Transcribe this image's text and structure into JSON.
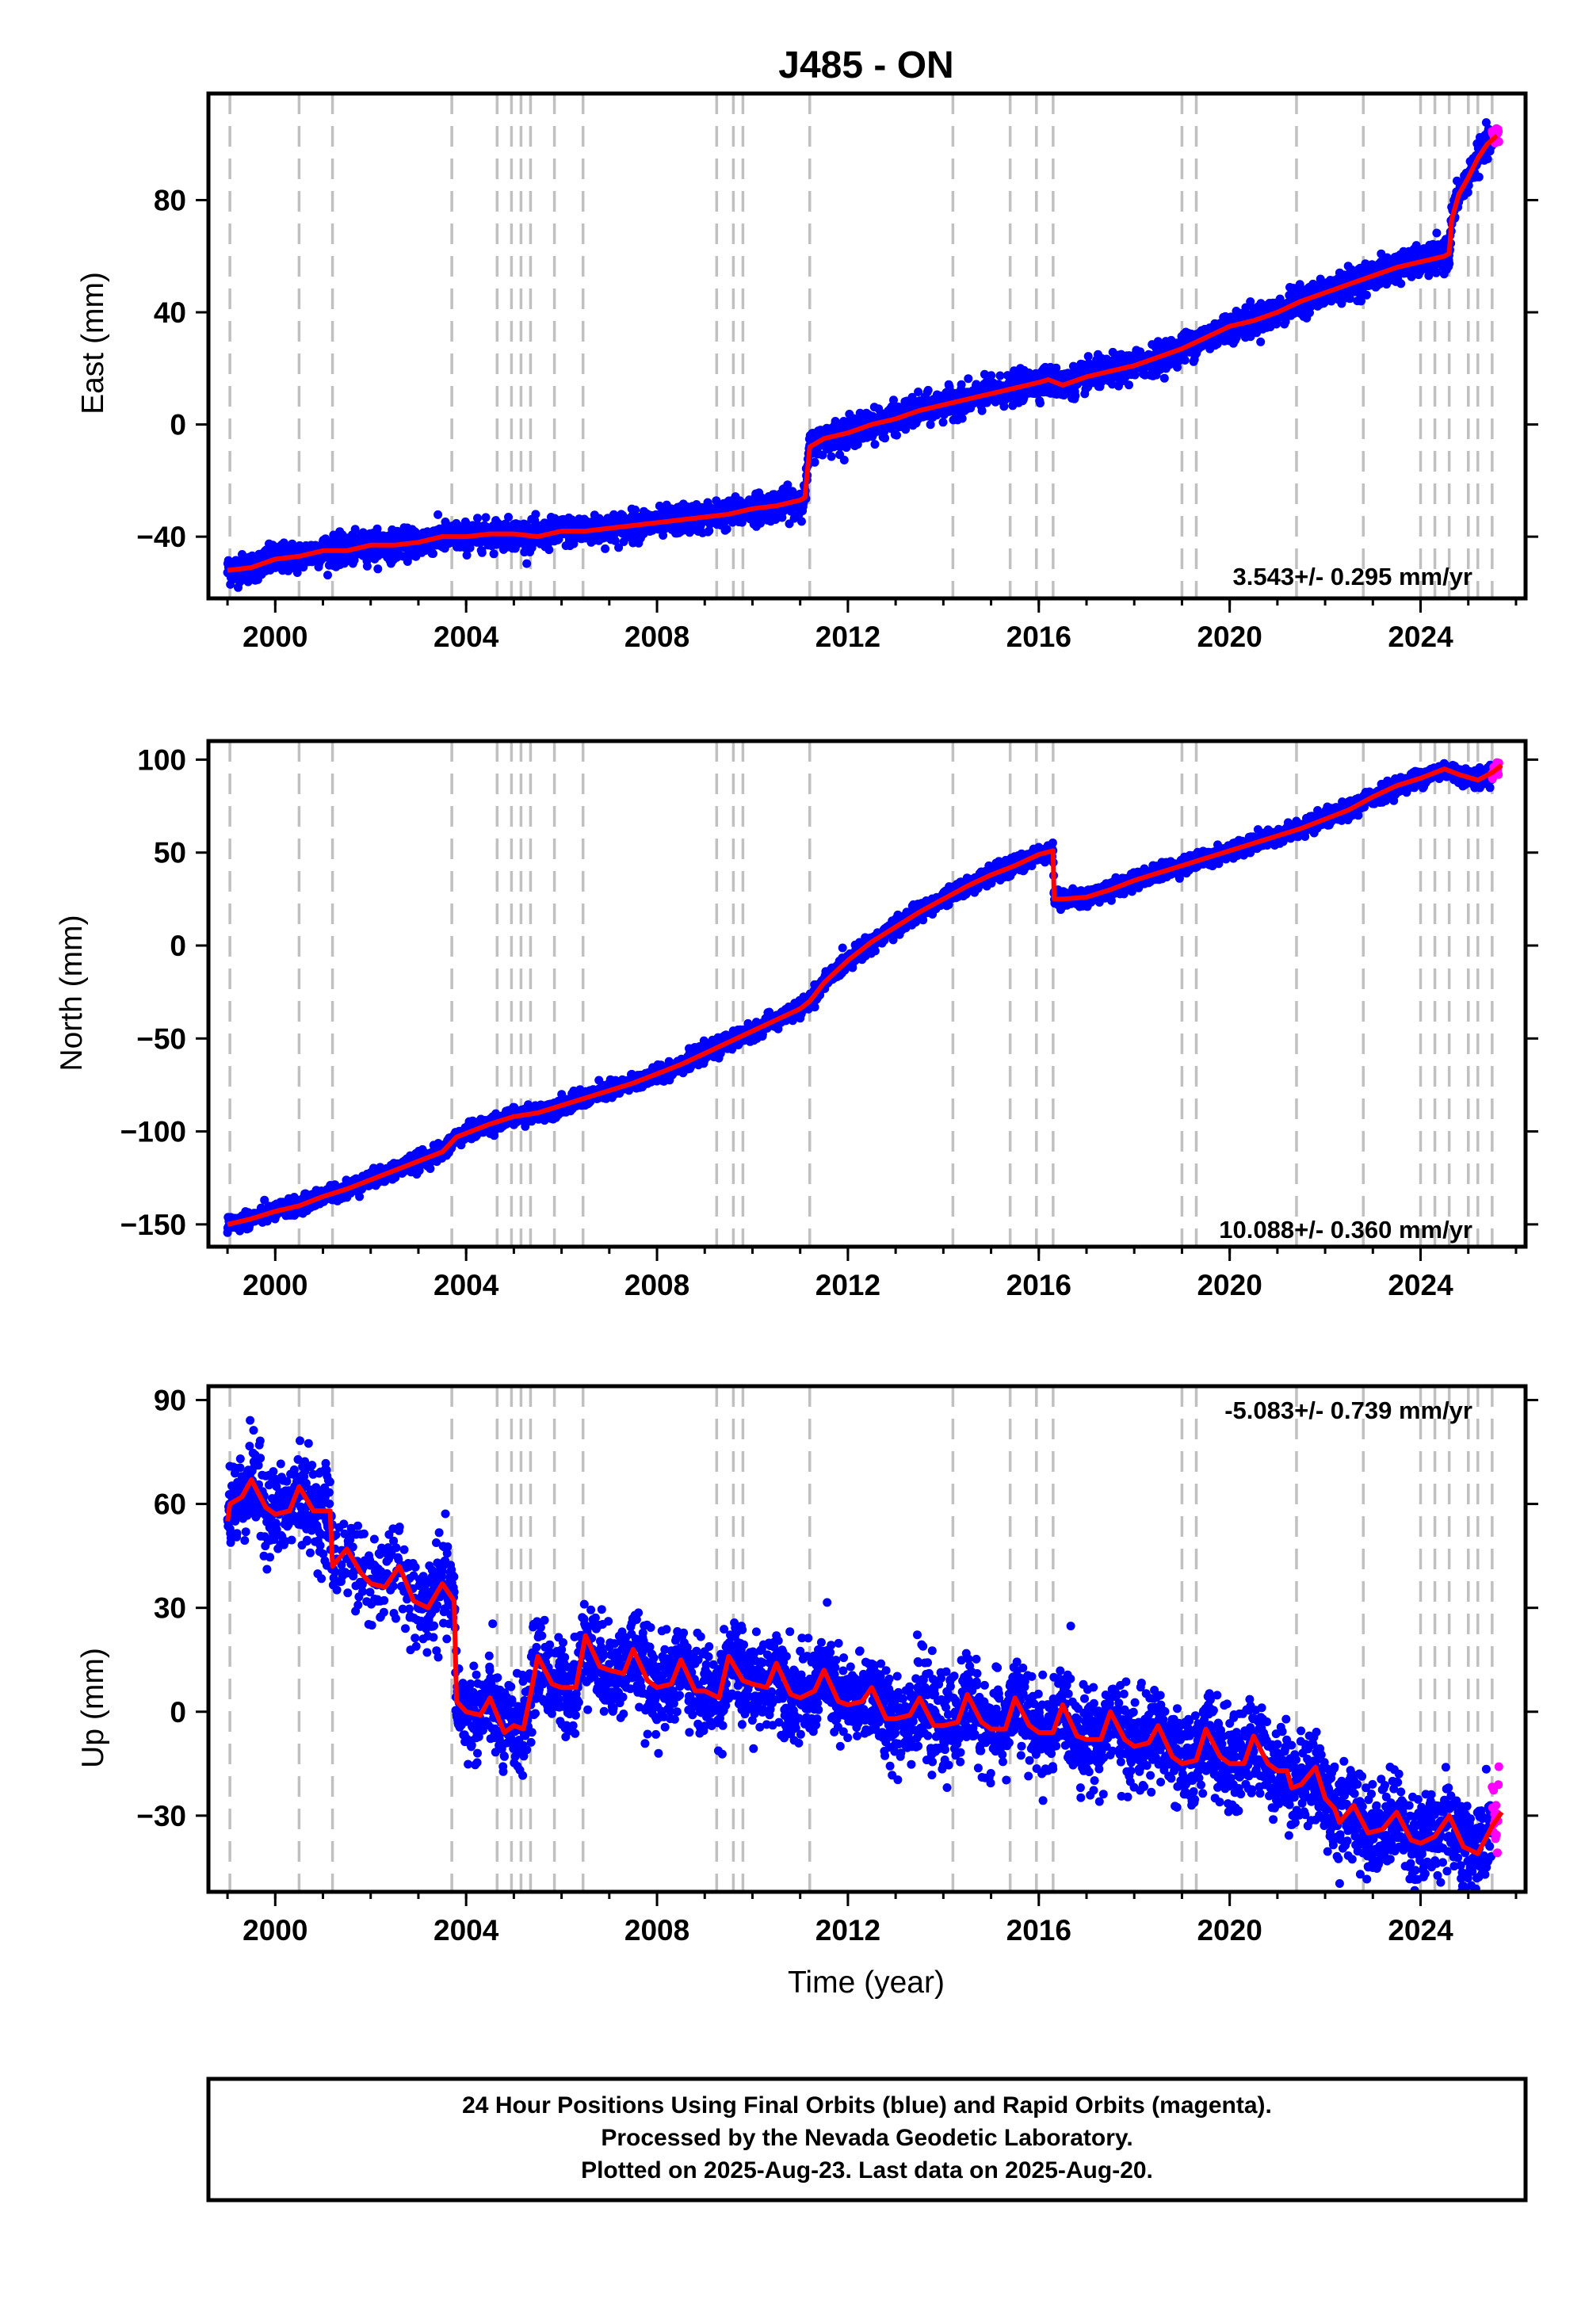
{
  "title": "J485 - ON",
  "colors": {
    "final": "#0000ff",
    "rapid": "#ff00ff",
    "model": "#ff0000",
    "event_lines": "#c0c0c0",
    "frame": "#000000"
  },
  "xlabel": "Time (year)",
  "footer": {
    "line1": "24 Hour Positions Using Final Orbits (blue) and Rapid Orbits (magenta).",
    "line2": "Processed by the Nevada Geodetic Laboratory.",
    "line3": "Plotted on 2025-Aug-23. Last data on 2025-Aug-20."
  },
  "chart_data": [
    {
      "type": "scatter",
      "name": "east",
      "ylabel": "East (mm)",
      "rate_text": "3.543+/- 0.295 mm/yr",
      "xlim": [
        1998.6,
        2026.2
      ],
      "ylim": [
        -62,
        118
      ],
      "xticks": [
        2000,
        2004,
        2008,
        2012,
        2016,
        2020,
        2024
      ],
      "yticks": [
        -40,
        0,
        40,
        80
      ],
      "scatter_sd": 2.5,
      "rapid_from": 2025.5,
      "model": [
        [
          1999.0,
          -52
        ],
        [
          1999.5,
          -51
        ],
        [
          2000.0,
          -48
        ],
        [
          2000.5,
          -47
        ],
        [
          2001.0,
          -45
        ],
        [
          2001.5,
          -45
        ],
        [
          2002.0,
          -43
        ],
        [
          2002.5,
          -43
        ],
        [
          2003.0,
          -42
        ],
        [
          2003.5,
          -40
        ],
        [
          2004.0,
          -40
        ],
        [
          2004.5,
          -39
        ],
        [
          2005.0,
          -39
        ],
        [
          2005.5,
          -40
        ],
        [
          2006.0,
          -38
        ],
        [
          2006.5,
          -38
        ],
        [
          2007.0,
          -37
        ],
        [
          2007.5,
          -36
        ],
        [
          2008.0,
          -35
        ],
        [
          2008.5,
          -34
        ],
        [
          2009.0,
          -33
        ],
        [
          2009.5,
          -32
        ],
        [
          2010.0,
          -30
        ],
        [
          2010.5,
          -29
        ],
        [
          2011.0,
          -27
        ],
        [
          2011.1,
          -26
        ],
        [
          2011.2,
          -8
        ],
        [
          2011.5,
          -5
        ],
        [
          2012.0,
          -3
        ],
        [
          2012.5,
          0
        ],
        [
          2013.0,
          2
        ],
        [
          2013.5,
          5
        ],
        [
          2014.0,
          7
        ],
        [
          2014.5,
          9
        ],
        [
          2015.0,
          11
        ],
        [
          2015.5,
          13
        ],
        [
          2016.0,
          15
        ],
        [
          2016.2,
          16
        ],
        [
          2016.5,
          14
        ],
        [
          2017.0,
          17
        ],
        [
          2017.5,
          19
        ],
        [
          2018.0,
          21
        ],
        [
          2018.5,
          24
        ],
        [
          2019.0,
          27
        ],
        [
          2019.5,
          31
        ],
        [
          2020.0,
          35
        ],
        [
          2020.5,
          37
        ],
        [
          2021.0,
          40
        ],
        [
          2021.5,
          44
        ],
        [
          2022.0,
          47
        ],
        [
          2022.5,
          50
        ],
        [
          2023.0,
          53
        ],
        [
          2023.5,
          56
        ],
        [
          2024.0,
          58
        ],
        [
          2024.5,
          60
        ],
        [
          2024.6,
          61
        ],
        [
          2024.65,
          73
        ],
        [
          2024.8,
          82
        ],
        [
          2025.0,
          88
        ],
        [
          2025.2,
          95
        ],
        [
          2025.4,
          100
        ],
        [
          2025.6,
          103
        ]
      ],
      "rate": "3.543 mm/yr"
    },
    {
      "type": "scatter",
      "name": "north",
      "ylabel": "North (mm)",
      "rate_text": "10.088+/- 0.360 mm/yr",
      "xlim": [
        1998.6,
        2026.2
      ],
      "ylim": [
        -162,
        110
      ],
      "xticks": [
        2000,
        2004,
        2008,
        2012,
        2016,
        2020,
        2024
      ],
      "yticks": [
        -150,
        -100,
        -50,
        0,
        50,
        100
      ],
      "scatter_sd": 2.2,
      "rapid_from": 2025.5,
      "model": [
        [
          1999.0,
          -150
        ],
        [
          1999.5,
          -147
        ],
        [
          2000.0,
          -143
        ],
        [
          2000.5,
          -140
        ],
        [
          2001.0,
          -135
        ],
        [
          2001.5,
          -131
        ],
        [
          2002.0,
          -126
        ],
        [
          2002.5,
          -121
        ],
        [
          2003.0,
          -116
        ],
        [
          2003.5,
          -111
        ],
        [
          2003.8,
          -103
        ],
        [
          2004.0,
          -101
        ],
        [
          2004.5,
          -96
        ],
        [
          2005.0,
          -92
        ],
        [
          2005.5,
          -90
        ],
        [
          2006.0,
          -86
        ],
        [
          2006.5,
          -82
        ],
        [
          2007.0,
          -78
        ],
        [
          2007.5,
          -74
        ],
        [
          2008.0,
          -69
        ],
        [
          2008.5,
          -64
        ],
        [
          2009.0,
          -58
        ],
        [
          2009.5,
          -52
        ],
        [
          2010.0,
          -46
        ],
        [
          2010.5,
          -40
        ],
        [
          2011.0,
          -34
        ],
        [
          2011.2,
          -30
        ],
        [
          2011.5,
          -20
        ],
        [
          2012.0,
          -8
        ],
        [
          2012.5,
          2
        ],
        [
          2013.0,
          10
        ],
        [
          2013.5,
          18
        ],
        [
          2014.0,
          25
        ],
        [
          2014.5,
          32
        ],
        [
          2015.0,
          38
        ],
        [
          2015.5,
          43
        ],
        [
          2016.0,
          49
        ],
        [
          2016.3,
          51
        ],
        [
          2016.32,
          25
        ],
        [
          2016.5,
          25
        ],
        [
          2017.0,
          26
        ],
        [
          2017.5,
          30
        ],
        [
          2018.0,
          35
        ],
        [
          2018.5,
          39
        ],
        [
          2019.0,
          43
        ],
        [
          2019.5,
          47
        ],
        [
          2020.0,
          51
        ],
        [
          2020.5,
          55
        ],
        [
          2021.0,
          59
        ],
        [
          2021.5,
          63
        ],
        [
          2022.0,
          68
        ],
        [
          2022.5,
          73
        ],
        [
          2023.0,
          80
        ],
        [
          2023.5,
          86
        ],
        [
          2024.0,
          90
        ],
        [
          2024.5,
          95
        ],
        [
          2024.8,
          92
        ],
        [
          2025.2,
          89
        ],
        [
          2025.5,
          93
        ],
        [
          2025.7,
          97
        ]
      ],
      "rate": "10.088 mm/yr"
    },
    {
      "type": "scatter",
      "name": "up",
      "ylabel": "Up (mm)",
      "rate_text": "-5.083+/- 0.739 mm/yr",
      "xlim": [
        1998.6,
        2026.2
      ],
      "ylim": [
        -52,
        94
      ],
      "xticks": [
        2000,
        2004,
        2008,
        2012,
        2016,
        2020,
        2024
      ],
      "yticks": [
        -30,
        0,
        30,
        60,
        90
      ],
      "scatter_sd": 6.5,
      "rapid_from": 2025.5,
      "data_gap": [
        2001.2,
        2003.0
      ],
      "model": [
        [
          1999.0,
          55
        ],
        [
          1999.05,
          60
        ],
        [
          1999.3,
          62
        ],
        [
          1999.5,
          67
        ],
        [
          1999.8,
          59
        ],
        [
          2000.0,
          57
        ],
        [
          2000.3,
          58
        ],
        [
          2000.5,
          65
        ],
        [
          2000.8,
          58
        ],
        [
          2001.0,
          58
        ],
        [
          2001.15,
          58
        ],
        [
          2001.2,
          42
        ],
        [
          2001.5,
          47
        ],
        [
          2001.8,
          40
        ],
        [
          2002.0,
          37
        ],
        [
          2002.3,
          36
        ],
        [
          2002.6,
          42
        ],
        [
          2002.9,
          32
        ],
        [
          2003.2,
          30
        ],
        [
          2003.5,
          37
        ],
        [
          2003.75,
          32
        ],
        [
          2003.8,
          3
        ],
        [
          2004.0,
          0
        ],
        [
          2004.3,
          -1
        ],
        [
          2004.5,
          4
        ],
        [
          2004.8,
          -6
        ],
        [
          2005.0,
          -4
        ],
        [
          2005.2,
          -5
        ],
        [
          2005.35,
          5
        ],
        [
          2005.5,
          16
        ],
        [
          2005.8,
          8
        ],
        [
          2006.0,
          7
        ],
        [
          2006.3,
          7
        ],
        [
          2006.5,
          22
        ],
        [
          2006.8,
          13
        ],
        [
          2007.0,
          12
        ],
        [
          2007.3,
          11
        ],
        [
          2007.5,
          18
        ],
        [
          2007.8,
          9
        ],
        [
          2008.0,
          7
        ],
        [
          2008.3,
          8
        ],
        [
          2008.5,
          15
        ],
        [
          2008.8,
          6
        ],
        [
          2009.0,
          6
        ],
        [
          2009.3,
          4
        ],
        [
          2009.5,
          16
        ],
        [
          2009.8,
          9
        ],
        [
          2010.0,
          8
        ],
        [
          2010.3,
          7
        ],
        [
          2010.5,
          14
        ],
        [
          2010.8,
          5
        ],
        [
          2011.0,
          4
        ],
        [
          2011.3,
          6
        ],
        [
          2011.5,
          12
        ],
        [
          2011.8,
          3
        ],
        [
          2012.0,
          2
        ],
        [
          2012.3,
          3
        ],
        [
          2012.5,
          7
        ],
        [
          2012.8,
          -2
        ],
        [
          2013.0,
          -2
        ],
        [
          2013.3,
          -1
        ],
        [
          2013.5,
          4
        ],
        [
          2013.8,
          -4
        ],
        [
          2014.0,
          -4
        ],
        [
          2014.3,
          -3
        ],
        [
          2014.5,
          5
        ],
        [
          2014.8,
          -3
        ],
        [
          2015.0,
          -5
        ],
        [
          2015.3,
          -5
        ],
        [
          2015.5,
          4
        ],
        [
          2015.8,
          -4
        ],
        [
          2016.0,
          -6
        ],
        [
          2016.3,
          -6
        ],
        [
          2016.5,
          2
        ],
        [
          2016.8,
          -7
        ],
        [
          2017.0,
          -8
        ],
        [
          2017.3,
          -8
        ],
        [
          2017.5,
          0
        ],
        [
          2017.8,
          -8
        ],
        [
          2018.0,
          -10
        ],
        [
          2018.3,
          -9
        ],
        [
          2018.5,
          -4
        ],
        [
          2018.8,
          -13
        ],
        [
          2019.0,
          -15
        ],
        [
          2019.3,
          -14
        ],
        [
          2019.5,
          -5
        ],
        [
          2019.8,
          -13
        ],
        [
          2020.0,
          -15
        ],
        [
          2020.3,
          -15
        ],
        [
          2020.5,
          -7
        ],
        [
          2020.8,
          -15
        ],
        [
          2021.0,
          -17
        ],
        [
          2021.2,
          -17
        ],
        [
          2021.3,
          -22
        ],
        [
          2021.5,
          -21
        ],
        [
          2021.8,
          -16
        ],
        [
          2022.0,
          -25
        ],
        [
          2022.2,
          -28
        ],
        [
          2022.3,
          -32
        ],
        [
          2022.6,
          -27
        ],
        [
          2022.9,
          -35
        ],
        [
          2023.2,
          -34
        ],
        [
          2023.5,
          -29
        ],
        [
          2023.8,
          -37
        ],
        [
          2024.0,
          -38
        ],
        [
          2024.3,
          -36
        ],
        [
          2024.6,
          -30
        ],
        [
          2024.9,
          -39
        ],
        [
          2025.2,
          -41
        ],
        [
          2025.5,
          -33
        ],
        [
          2025.7,
          -29
        ]
      ],
      "rate": "-5.083 mm/yr"
    }
  ],
  "event_lines": [
    1999.05,
    2000.5,
    2001.2,
    2003.7,
    2004.65,
    2004.95,
    2005.15,
    2005.35,
    2005.85,
    2006.45,
    2009.25,
    2009.6,
    2009.8,
    2011.2,
    2014.2,
    2015.4,
    2015.95,
    2016.3,
    2019.0,
    2019.3,
    2021.4,
    2022.8,
    2024.0,
    2024.3,
    2024.6,
    2025.0,
    2025.2,
    2025.5
  ]
}
